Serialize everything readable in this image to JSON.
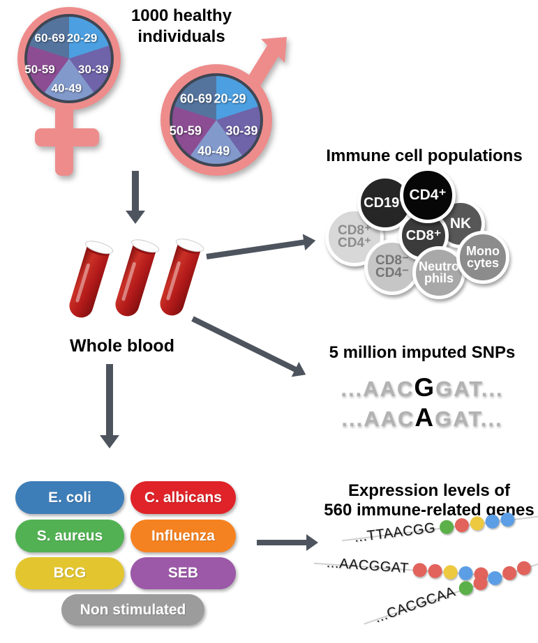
{
  "header": {
    "title": "1000 healthy\nindividuals"
  },
  "cohort": {
    "symbol_color": "#EE8C8C",
    "age_groups": [
      {
        "label": "20-29",
        "color": "#4C9FE0"
      },
      {
        "label": "30-39",
        "color": "#6F63A9"
      },
      {
        "label": "40-49",
        "color": "#8299CC"
      },
      {
        "label": "50-59",
        "color": "#8C4D93"
      },
      {
        "label": "60-69",
        "color": "#54749E"
      }
    ]
  },
  "whole_blood": {
    "label": "Whole blood"
  },
  "immune": {
    "title": "Immune cell populations",
    "cells": [
      {
        "label": "CD8⁺\nCD4⁺",
        "color": "#D8D8D8",
        "text_color": "#8C8C8C"
      },
      {
        "label": "CD19⁺",
        "color": "#262626",
        "text_color": "#FFFFFF"
      },
      {
        "label": "NK",
        "color": "#575757",
        "text_color": "#FFFFFF"
      },
      {
        "label": "CD4⁺",
        "color": "#070707",
        "text_color": "#FFFFFF"
      },
      {
        "label": "CD8⁺",
        "color": "#3B3B3B",
        "text_color": "#FFFFFF"
      },
      {
        "label": "CD8⁻\nCD4⁻",
        "color": "#C6C6C6",
        "text_color": "#757575"
      },
      {
        "label": "Neutro\nphils",
        "color": "#A8A8A8",
        "text_color": "#FFFFFF"
      },
      {
        "label": "Mono\ncytes",
        "color": "#8C8C8C",
        "text_color": "#FFFFFF"
      }
    ]
  },
  "snps": {
    "title": "5 million imputed SNPs",
    "sequences": [
      {
        "pre": "...AAC",
        "variant": "G",
        "post": "GAT..."
      },
      {
        "pre": "...AAC",
        "variant": "A",
        "post": "GAT..."
      }
    ]
  },
  "stimuli": {
    "items": [
      {
        "label": "E. coli",
        "color": "#3E7EB8"
      },
      {
        "label": "C. albicans",
        "color": "#DF2328"
      },
      {
        "label": "S. aureus",
        "color": "#52B253"
      },
      {
        "label": "Influenza",
        "color": "#F58220"
      },
      {
        "label": "BCG",
        "color": "#E3C52F"
      },
      {
        "label": "SEB",
        "color": "#9C59A8"
      },
      {
        "label": "Non stimulated",
        "color": "#9C9C9C"
      }
    ]
  },
  "expression": {
    "title": "Expression levels of\n560 immune-related genes",
    "dot_colors": {
      "green": "#5CB04A",
      "red": "#E2635B",
      "yellow": "#EDC93F",
      "blue": "#5C9EE5"
    },
    "rows": [
      {
        "seq": "...TTAACGG",
        "dots": [
          "green",
          "red",
          "yellow",
          "blue",
          "blue"
        ]
      },
      {
        "seq": "...AACGGAT",
        "dots": [
          "red",
          "red",
          "yellow",
          "blue",
          "red"
        ]
      },
      {
        "seq": "...CACGCAA",
        "dots": [
          "green",
          "red",
          "blue",
          "red",
          "red"
        ]
      }
    ]
  },
  "arrow_color": "#4E545E"
}
